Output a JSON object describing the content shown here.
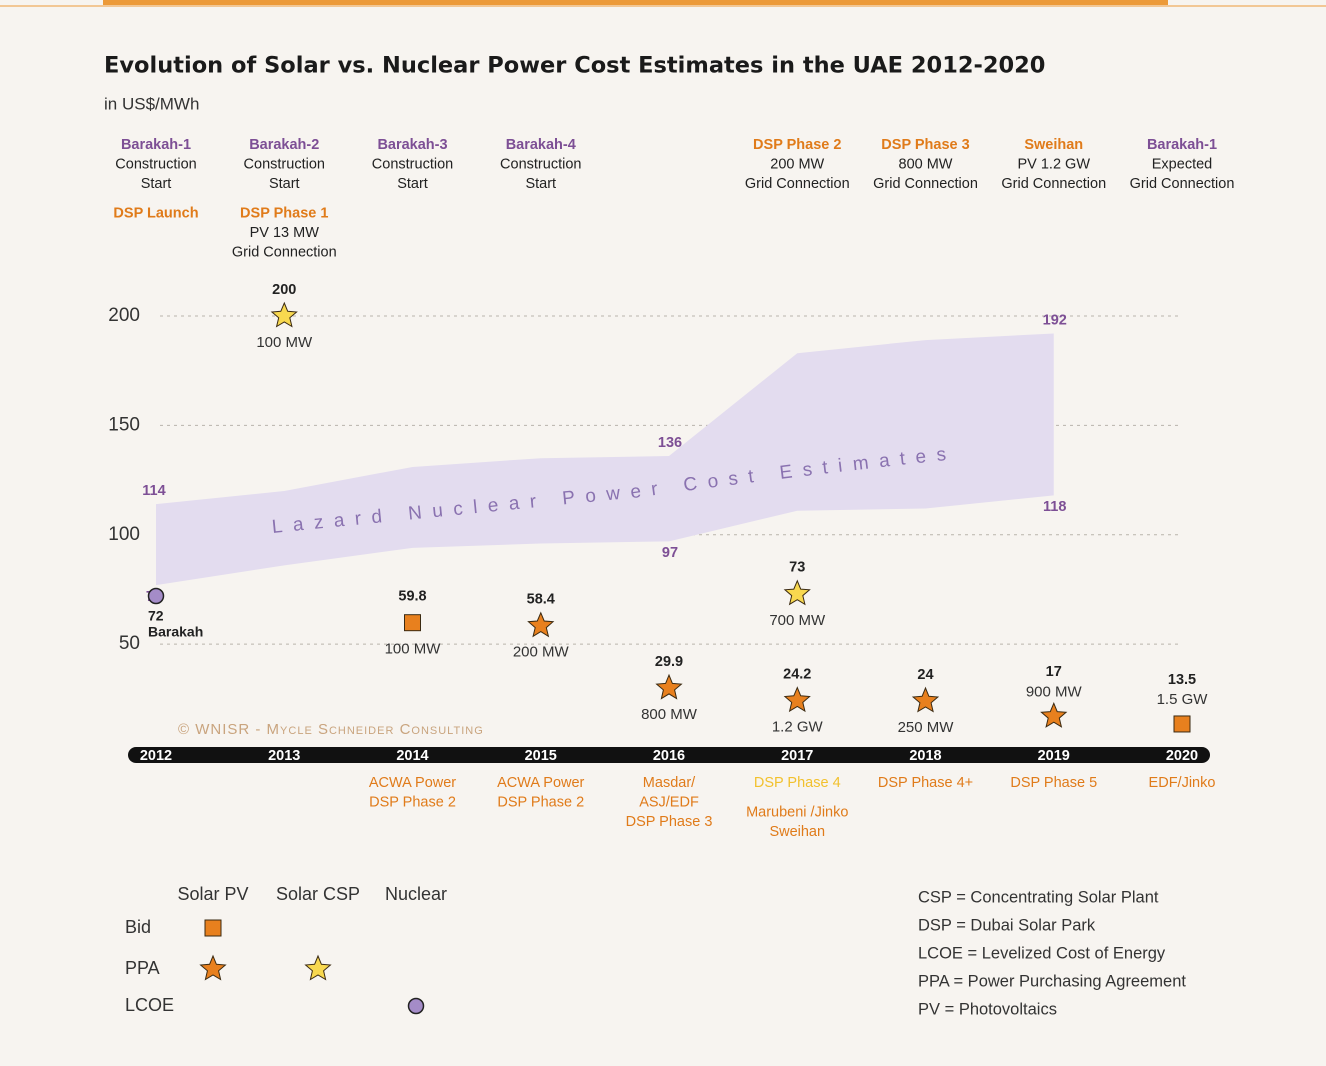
{
  "chart_data": {
    "type": "scatter",
    "title": "Evolution of Solar vs. Nuclear Power Cost Estimates in the UAE 2012-2020",
    "subtitle": "in US$/MWh",
    "xlim": [
      2012,
      2020
    ],
    "xticks": [
      2012,
      2013,
      2014,
      2015,
      2016,
      2017,
      2018,
      2019,
      2020
    ],
    "ylim": [
      0,
      200
    ],
    "yticks": [
      50,
      100,
      150,
      200
    ],
    "grid": true,
    "band": {
      "name": "Lazard Nuclear Power Cost Estimates",
      "color": "#e3dcef",
      "x": [
        2012,
        2013,
        2014,
        2015,
        2016,
        2017,
        2018,
        2019
      ],
      "upper": [
        114,
        120,
        131,
        135,
        136,
        183,
        189,
        192
      ],
      "lower": [
        77,
        86,
        94,
        96,
        97,
        111,
        112,
        118
      ],
      "upper_labels": [
        "114",
        null,
        null,
        null,
        "136",
        null,
        null,
        "192"
      ],
      "lower_labels": [
        "77",
        null,
        null,
        null,
        "97",
        null,
        null,
        "118"
      ]
    },
    "series": [
      {
        "technology": "Solar PV",
        "contract": "Bid",
        "marker": "square",
        "color": "#e8801e",
        "x": [
          2014,
          2020
        ],
        "values": [
          59.8,
          13.5
        ],
        "point_labels": [
          "100 MW",
          "1.5 GW"
        ]
      },
      {
        "technology": "Solar PV",
        "contract": "PPA",
        "marker": "star",
        "color": "#e8801e",
        "x": [
          2015,
          2016,
          2017,
          2018,
          2019
        ],
        "values": [
          58.4,
          29.9,
          24.2,
          24,
          17
        ],
        "point_labels": [
          "200 MW",
          "800 MW",
          "1.2 GW",
          "250 MW",
          "900 MW"
        ]
      },
      {
        "technology": "Solar CSP",
        "contract": "PPA",
        "marker": "star",
        "color": "#f8d84f",
        "x": [
          2013,
          2017
        ],
        "values": [
          200,
          73
        ],
        "point_labels": [
          "100 MW",
          "700 MW"
        ]
      },
      {
        "technology": "Nuclear",
        "contract": "LCOE",
        "marker": "circle",
        "color": "#a48cc8",
        "x": [
          2012
        ],
        "values": [
          72
        ],
        "point_labels": [
          "Barakah"
        ]
      }
    ],
    "events_above": [
      {
        "x": 2012,
        "groups": [
          {
            "title": "Barakah-1",
            "color": "#7d4f95",
            "lines": [
              "Construction",
              "Start"
            ]
          },
          {
            "title": "DSP Launch",
            "color": "#e07b1a",
            "lines": []
          }
        ]
      },
      {
        "x": 2013,
        "groups": [
          {
            "title": "Barakah-2",
            "color": "#7d4f95",
            "lines": [
              "Construction",
              "Start"
            ]
          },
          {
            "title": "DSP Phase 1",
            "color": "#e07b1a",
            "lines": [
              "PV 13 MW",
              "Grid Connection"
            ]
          }
        ]
      },
      {
        "x": 2014,
        "groups": [
          {
            "title": "Barakah-3",
            "color": "#7d4f95",
            "lines": [
              "Construction",
              "Start"
            ]
          }
        ]
      },
      {
        "x": 2015,
        "groups": [
          {
            "title": "Barakah-4",
            "color": "#7d4f95",
            "lines": [
              "Construction",
              "Start"
            ]
          }
        ]
      },
      {
        "x": 2017,
        "groups": [
          {
            "title": "DSP Phase 2",
            "color": "#e07b1a",
            "lines": [
              "200 MW",
              "Grid Connection"
            ]
          }
        ]
      },
      {
        "x": 2018,
        "groups": [
          {
            "title": "DSP Phase 3",
            "color": "#e07b1a",
            "lines": [
              "800 MW",
              "Grid Connection"
            ]
          }
        ]
      },
      {
        "x": 2019,
        "groups": [
          {
            "title": "Sweihan",
            "color": "#e07b1a",
            "lines": [
              "PV 1.2 GW",
              "Grid Connection"
            ]
          }
        ]
      },
      {
        "x": 2020,
        "groups": [
          {
            "title": "Barakah-1",
            "color": "#7d4f95",
            "lines": [
              "Expected",
              "Grid Connection"
            ]
          }
        ]
      }
    ],
    "events_below": [
      {
        "x": 2014,
        "groups": [
          {
            "color": "#e07b1a",
            "lines": [
              "ACWA Power",
              "DSP Phase 2"
            ]
          }
        ]
      },
      {
        "x": 2015,
        "groups": [
          {
            "color": "#e07b1a",
            "lines": [
              "ACWA Power",
              "DSP Phase 2"
            ]
          }
        ]
      },
      {
        "x": 2016,
        "groups": [
          {
            "color": "#e07b1a",
            "lines": [
              "Masdar/",
              "ASJ/EDF",
              "DSP Phase 3"
            ]
          }
        ]
      },
      {
        "x": 2017,
        "groups": [
          {
            "color": "#f2c12e",
            "lines": [
              "DSP Phase 4"
            ]
          },
          {
            "color": "#e07b1a",
            "lines": [
              "Marubeni /Jinko",
              "Sweihan"
            ]
          }
        ]
      },
      {
        "x": 2018,
        "groups": [
          {
            "color": "#e07b1a",
            "lines": [
              "DSP Phase 4+"
            ]
          }
        ]
      },
      {
        "x": 2019,
        "groups": [
          {
            "color": "#e07b1a",
            "lines": [
              "DSP Phase 5"
            ]
          }
        ]
      },
      {
        "x": 2020,
        "groups": [
          {
            "color": "#e07b1a",
            "lines": [
              "EDF/Jinko"
            ]
          }
        ]
      }
    ],
    "copyright": "© WNISR - Mycle Schneider Consulting",
    "glossary": [
      "CSP = Concentrating Solar Plant",
      "DSP = Dubai Solar Park",
      "LCOE = Levelized Cost of Energy",
      "PPA = Power Purchasing Agreement",
      "PV = Photovoltaics"
    ]
  }
}
